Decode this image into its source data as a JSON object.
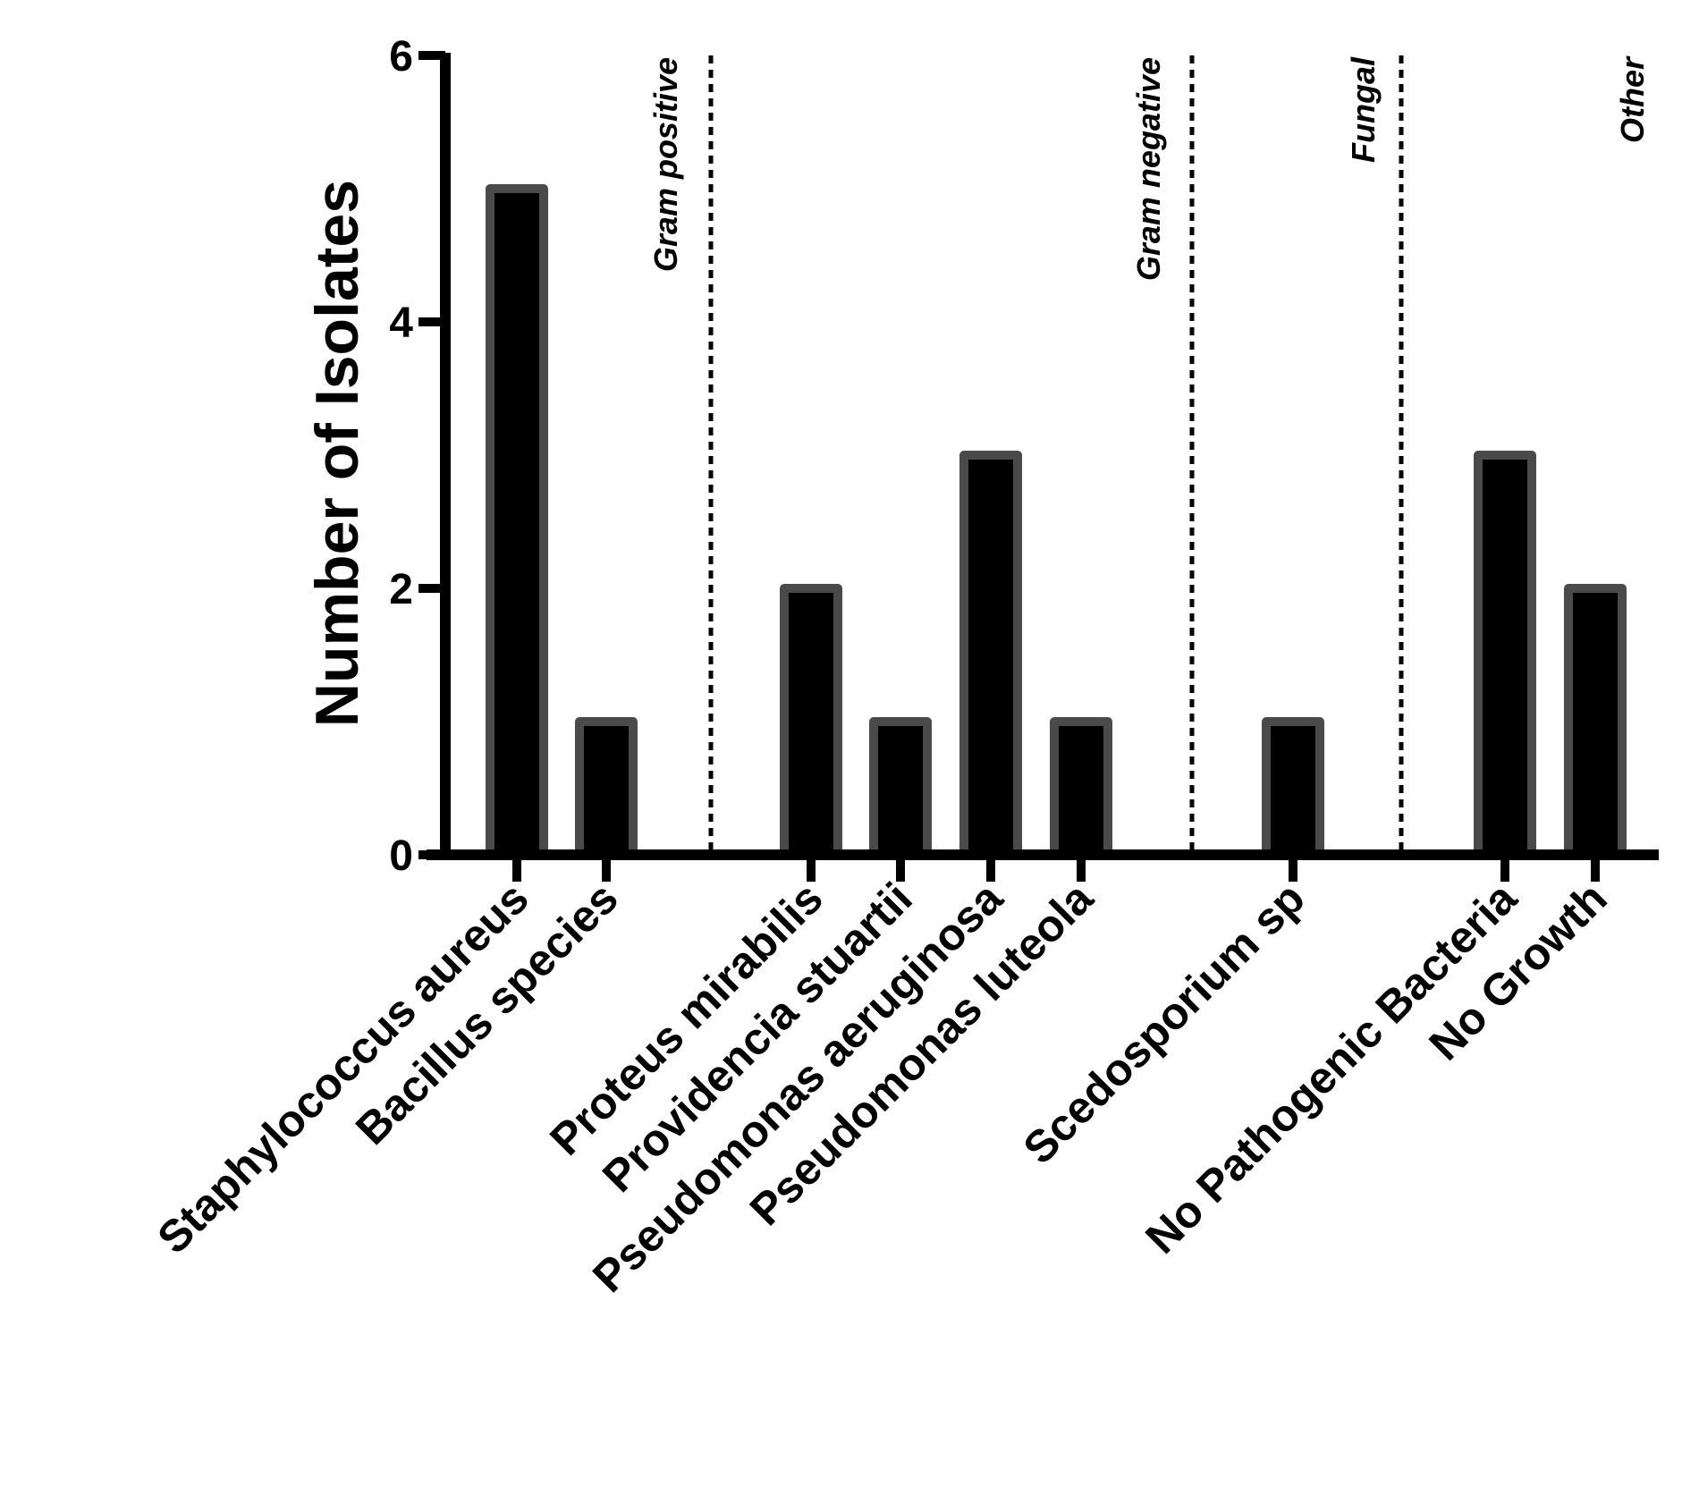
{
  "chart_data": {
    "type": "bar",
    "title": "",
    "xlabel": "",
    "ylabel": "Number of Isolates",
    "ylim": [
      0,
      6
    ],
    "yticks": [
      0,
      2,
      4,
      6
    ],
    "grid": false,
    "categories": [
      "Staphylococcus aureus",
      "Bacillus species",
      "Proteus mirabilis",
      "Providencia stuartii",
      "Pseudomonas aeruginosa",
      "Pseudomonas luteola",
      "Scedosporium sp",
      "No Pathogenic Bacteria",
      "No Growth"
    ],
    "values": [
      5,
      1,
      2,
      1,
      3,
      1,
      1,
      3,
      2
    ],
    "groups": [
      {
        "label": "Gram positive",
        "categories": [
          "Staphylococcus aureus",
          "Bacillus species"
        ]
      },
      {
        "label": "Gram negative",
        "categories": [
          "Proteus mirabilis",
          "Providencia stuartii",
          "Pseudomonas aeruginosa",
          "Pseudomonas luteola"
        ]
      },
      {
        "label": "Fungal",
        "categories": [
          "Scedosporium sp"
        ]
      },
      {
        "label": "Other",
        "categories": [
          "No Pathogenic Bacteria",
          "No Growth"
        ]
      }
    ],
    "colors": {
      "bar_fill": "#000000",
      "bar_edge": "#4a4a4a",
      "axis": "#000000"
    }
  }
}
